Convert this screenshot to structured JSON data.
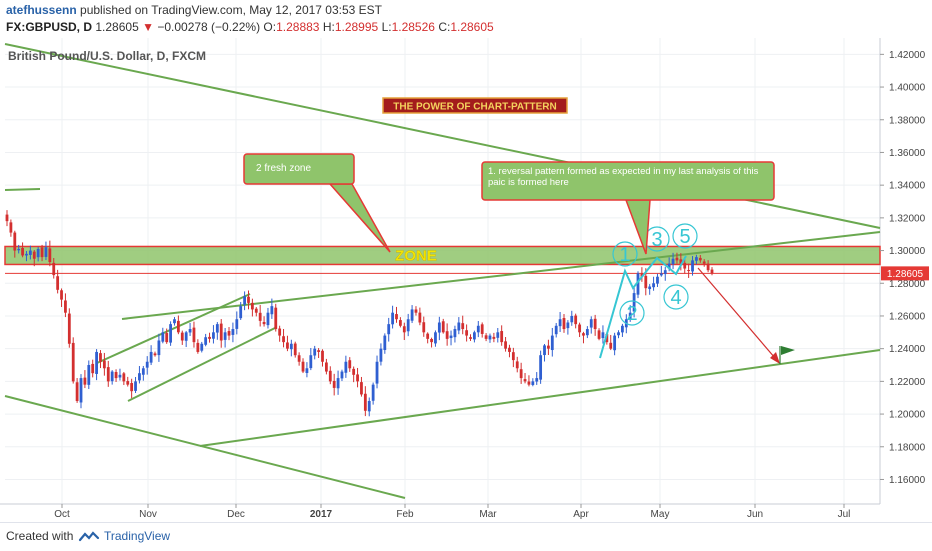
{
  "header": {
    "author": "atefhussenn",
    "published_text": "published on TradingView.com, May 12, 2017 03:53 EST",
    "symbol": "FX:GBPUSD, D",
    "last": "1.28605",
    "change": "−0.00278 (−0.22%)",
    "o_label": "O:",
    "o_val": "1.28883",
    "h_label": "H:",
    "h_val": "1.28995",
    "l_label": "L:",
    "l_val": "1.28526",
    "c_label": "C:",
    "c_val": "1.28605"
  },
  "footer": {
    "created": "Created with",
    "brand": "TradingView"
  },
  "colors": {
    "up": "#2f5fd1",
    "down": "#d32f2f",
    "trend": "#6aa84f",
    "zone": "#8fc46b",
    "zone_border": "#e53935",
    "wave": "#36c6d3",
    "price_tag": "#e53935"
  },
  "chart_data": {
    "type": "candlestick",
    "title": "British Pound/U.S. Dollar, D, FXCM",
    "ylim": [
      1.145,
      1.43
    ],
    "y_ticks": [
      "1.42000",
      "1.40000",
      "1.38000",
      "1.36000",
      "1.34000",
      "1.32000",
      "1.30000",
      "1.28000",
      "1.26000",
      "1.24000",
      "1.22000",
      "1.20000",
      "1.18000",
      "1.16000"
    ],
    "x_ticks": [
      "Oct",
      "Nov",
      "Dec",
      "2017",
      "Feb",
      "Mar",
      "Apr",
      "May",
      "Jun",
      "Jul"
    ],
    "last_price_label": "1.28605",
    "banner": "THE POWER OF CHART-PATTERN",
    "zone_label": "ZONE",
    "zone_range": [
      1.2915,
      1.3025
    ],
    "callouts": [
      {
        "text": "2 fresh zone"
      },
      {
        "text": "1. reversal pattern formed as expected in my last analysis of this paic is formed here"
      }
    ],
    "wave_labels": [
      "1",
      "2",
      "3",
      "4",
      "5"
    ],
    "series": [
      {
        "name": "GBPUSD",
        "close_path": [
          1.318,
          1.311,
          1.3,
          1.301,
          1.297,
          1.298,
          1.3,
          1.295,
          1.301,
          1.296,
          1.302,
          1.293,
          1.285,
          1.276,
          1.27,
          1.262,
          1.243,
          1.22,
          1.208,
          1.222,
          1.218,
          1.23,
          1.225,
          1.238,
          1.232,
          1.228,
          1.22,
          1.226,
          1.222,
          1.224,
          1.22,
          1.218,
          1.214,
          1.22,
          1.225,
          1.228,
          1.232,
          1.238,
          1.236,
          1.245,
          1.25,
          1.244,
          1.255,
          1.258,
          1.25,
          1.245,
          1.25,
          1.252,
          1.244,
          1.238,
          1.243,
          1.247,
          1.246,
          1.25,
          1.255,
          1.245,
          1.25,
          1.248,
          1.252,
          1.258,
          1.266,
          1.272,
          1.268,
          1.264,
          1.262,
          1.257,
          1.255,
          1.262,
          1.266,
          1.252,
          1.248,
          1.244,
          1.24,
          1.243,
          1.236,
          1.232,
          1.226,
          1.228,
          1.236,
          1.24,
          1.238,
          1.232,
          1.226,
          1.22,
          1.216,
          1.222,
          1.226,
          1.232,
          1.228,
          1.224,
          1.22,
          1.212,
          1.202,
          1.208,
          1.218,
          1.232,
          1.24,
          1.248,
          1.255,
          1.262,
          1.258,
          1.254,
          1.25,
          1.258,
          1.264,
          1.262,
          1.256,
          1.25,
          1.246,
          1.244,
          1.25,
          1.256,
          1.25,
          1.246,
          1.248,
          1.252,
          1.256,
          1.252,
          1.248,
          1.246,
          1.25,
          1.254,
          1.249,
          1.246,
          1.248,
          1.246,
          1.25,
          1.244,
          1.24,
          1.238,
          1.233,
          1.228,
          1.222,
          1.22,
          1.218,
          1.22,
          1.222,
          1.236,
          1.242,
          1.24,
          1.248,
          1.254,
          1.258,
          1.252,
          1.256,
          1.26,
          1.255,
          1.25,
          1.248,
          1.252,
          1.258,
          1.252,
          1.246,
          1.25,
          1.244,
          1.24,
          1.248,
          1.25,
          1.254,
          1.258,
          1.262,
          1.274,
          1.286,
          1.284,
          1.277,
          1.278,
          1.28,
          1.284,
          1.286,
          1.288,
          1.292,
          1.295,
          1.294,
          1.292,
          1.289,
          1.288,
          1.294,
          1.296,
          1.294,
          1.292,
          1.288,
          1.286
        ]
      }
    ]
  }
}
